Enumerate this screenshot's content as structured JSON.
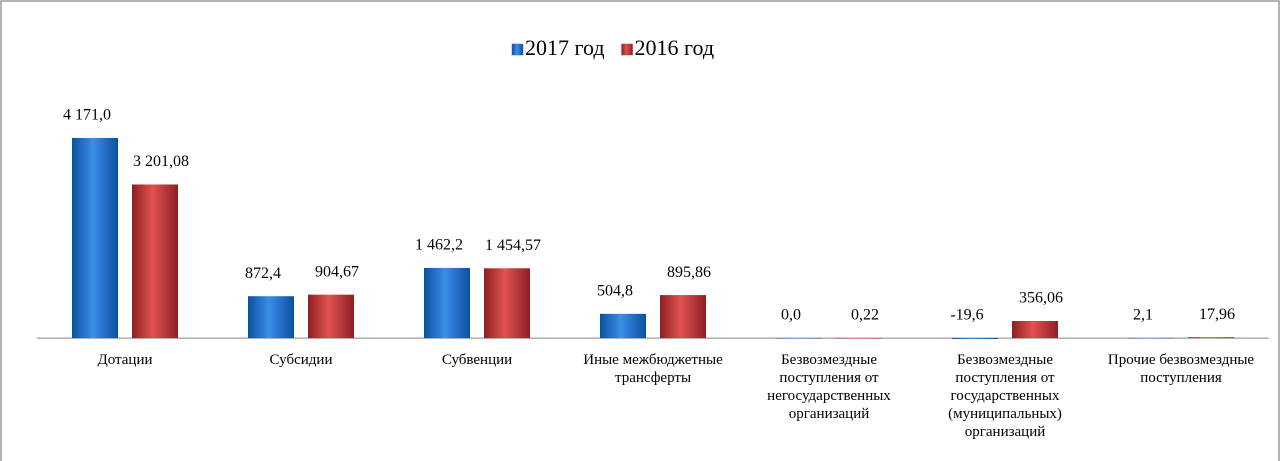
{
  "chart_data": {
    "type": "bar",
    "categories": [
      "Дотации",
      "Субсидии",
      "Субвенции",
      "Иные межбюджетные трансферты",
      "Безвозмездные поступления от негосударственных организаций",
      "Безвозмездные поступления от государственных (муниципальных) организаций",
      "Прочие безвозмездные поступления"
    ],
    "series": [
      {
        "name": "2017 год",
        "color": "#1f6fc8",
        "values": [
          4171.0,
          872.4,
          1462.2,
          504.8,
          0.0,
          -19.6,
          2.1
        ],
        "value_labels": [
          "4 171,0",
          "872,4",
          "1 462,2",
          "504,8",
          "0,0",
          "-19,6",
          "2,1"
        ]
      },
      {
        "name": "2016 год",
        "color": "#c0393b",
        "values": [
          3201.08,
          904.67,
          1454.57,
          895.86,
          0.22,
          356.06,
          17.96
        ],
        "value_labels": [
          "3 201,08",
          "904,67",
          "1 454,57",
          "895,86",
          "0,22",
          "356,06",
          "17,96"
        ]
      }
    ],
    "ylim": [
      -2500,
      5400
    ],
    "legend": "top"
  }
}
